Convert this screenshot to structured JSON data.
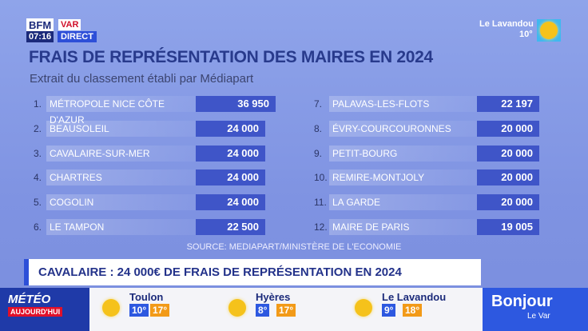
{
  "channel": {
    "logo": "BFM",
    "region": "VAR",
    "time": "07:16",
    "live": "DIRECT"
  },
  "top_weather": {
    "city": "Le Lavandou",
    "temp": "10°"
  },
  "title": "FRAIS DE REPRÉSENTATION DES MAIRES EN 2024",
  "subtitle": "Extrait du classement établi par Médiapart",
  "table": {
    "rows": [
      [
        "1.",
        "MÉTROPOLE NICE CÔTE D'AZUR",
        "36 950"
      ],
      [
        "2.",
        "BEAUSOLEIL",
        "24 000"
      ],
      [
        "3.",
        "CAVALAIRE-SUR-MER",
        "24 000"
      ],
      [
        "4.",
        "CHARTRES",
        "24 000"
      ],
      [
        "5.",
        "COGOLIN",
        "24 000"
      ],
      [
        "6.",
        "LE TAMPON",
        "22 500"
      ],
      [
        "7.",
        "PALAVAS-LES-FLOTS",
        "22 197"
      ],
      [
        "8.",
        "ÉVRY-COURCOURONNES",
        "20 000"
      ],
      [
        "9.",
        "PETIT-BOURG",
        "20 000"
      ],
      [
        "10.",
        "REMIRE-MONTJOLY",
        "20 000"
      ],
      [
        "11.",
        "LA GARDE",
        "20 000"
      ],
      [
        "12.",
        "MAIRE DE PARIS",
        "19 005"
      ]
    ]
  },
  "source": "SOURCE: MEDIAPART/MINISTÈRE DE L'ECONOMIE",
  "banner": "CAVALAIRE : 24 000€ DE FRAIS DE REPRÉSENTATION EN 2024",
  "weather": {
    "label": [
      "MÉTÉO",
      "AUJOURD'HUI"
    ],
    "cities": [
      {
        "name": "Toulon",
        "low": "10°",
        "high": "17°"
      },
      {
        "name": "Hyères",
        "low": "8°",
        "high": "17°"
      },
      {
        "name": "Le Lavandou",
        "low": "9°",
        "high": "18°"
      }
    ]
  },
  "show": {
    "title": "Bonjour",
    "subtitle": "Le Var"
  }
}
